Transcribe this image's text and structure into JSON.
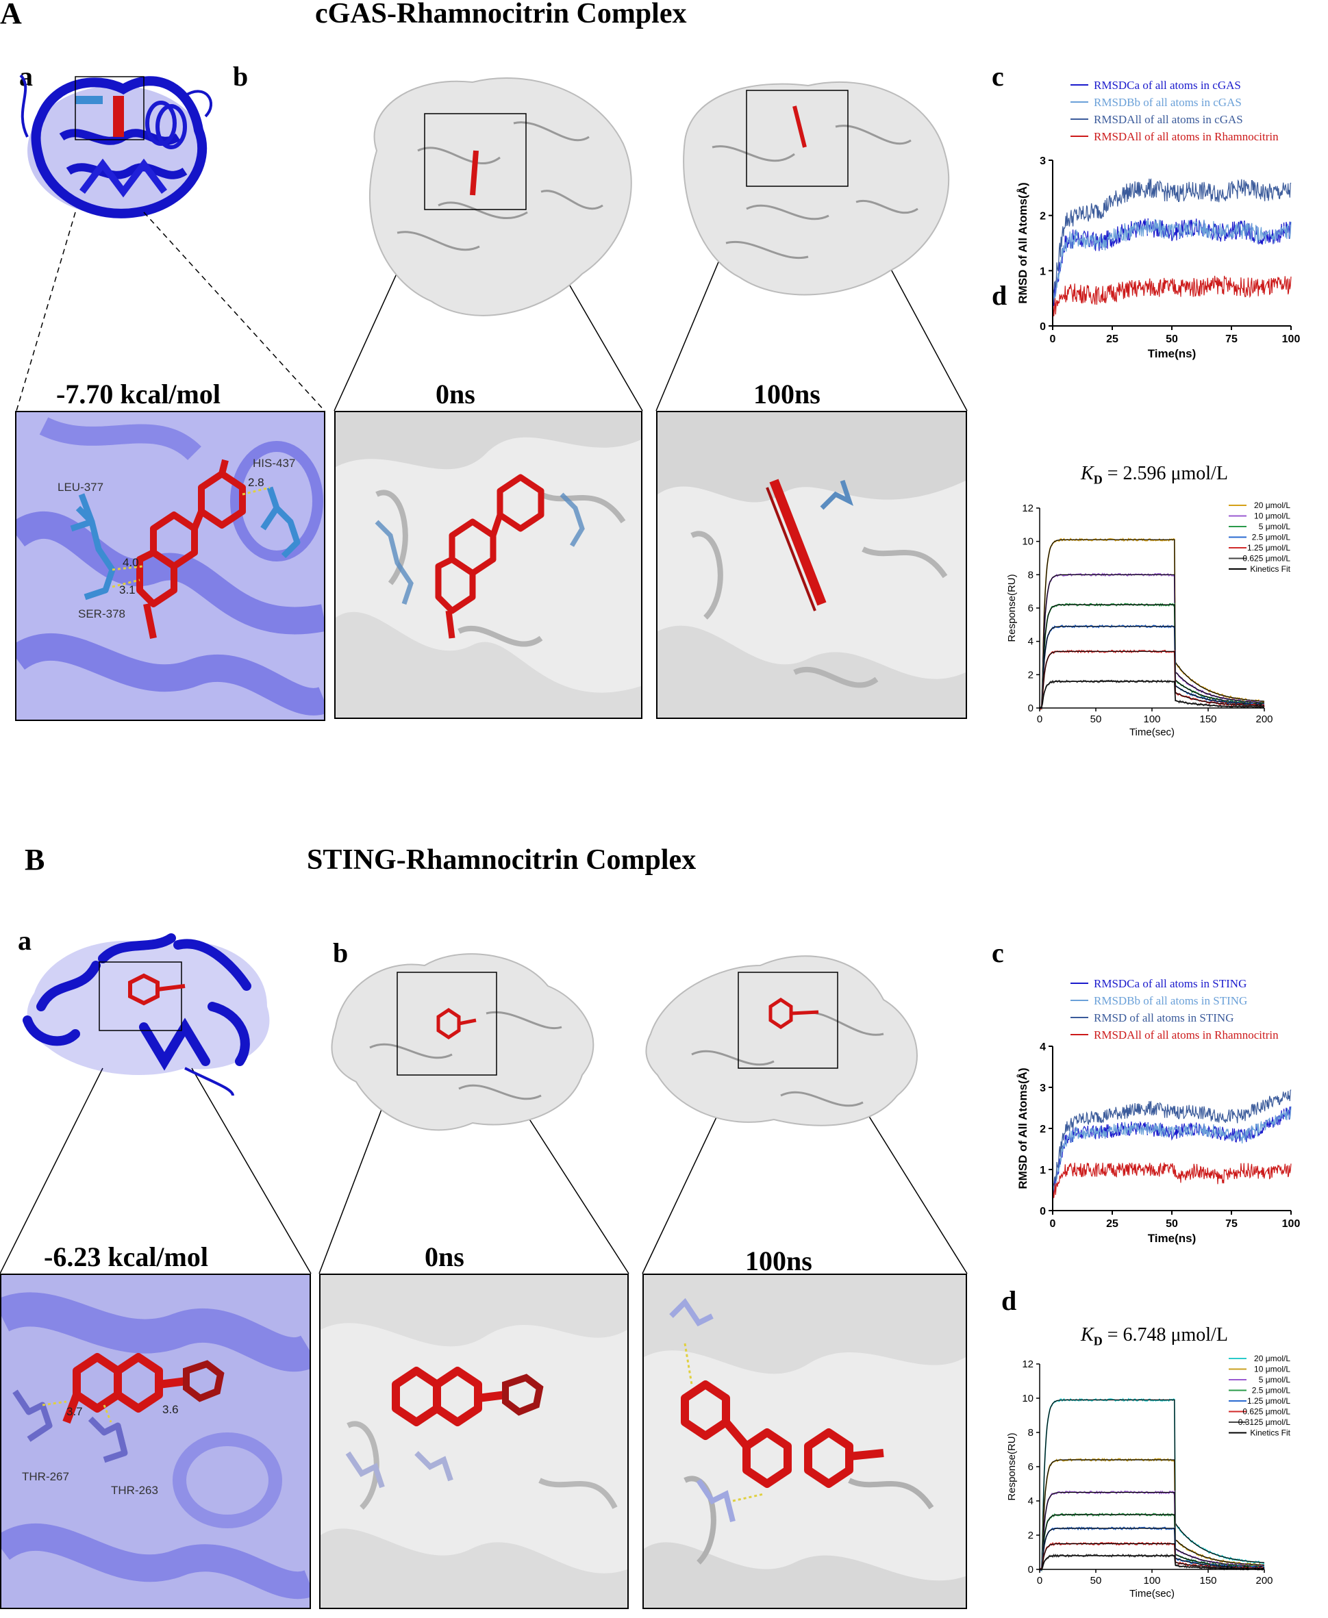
{
  "panelA": {
    "letter": "A",
    "title": "cGAS-Rhamnocitrin Complex",
    "sub_a": "a",
    "sub_b": "b",
    "sub_c": "c",
    "sub_d": "d",
    "energy": "-7.70 kcal/mol",
    "time0": "0ns",
    "time100": "100ns",
    "residues": [
      "LEU-377",
      "HIS-437",
      "SER-378"
    ],
    "distances": [
      "4.0",
      "3.1",
      "2.8"
    ],
    "kd_symbol": "K",
    "kd_sub": "D",
    "kd_value": "= 2.596 μmol/L"
  },
  "panelB": {
    "letter": "B",
    "title": "STING-Rhamnocitrin Complex",
    "sub_a": "a",
    "sub_b": "b",
    "sub_c": "c",
    "sub_d": "d",
    "energy": "-6.23 kcal/mol",
    "time0": "0ns",
    "time100": "100ns",
    "residues": [
      "THR-267",
      "THR-263"
    ],
    "distances": [
      "3.7",
      "3.6"
    ],
    "kd_symbol": "K",
    "kd_sub": "D",
    "kd_value": "= 6.748 μmol/L"
  },
  "colors": {
    "protein_blue": "#1414c8",
    "ligand_red": "#d21414",
    "residue_blue": "#3c8cd2",
    "surface_gray": "#e6e6e6"
  },
  "chart_data": [
    {
      "id": "A-c",
      "type": "line",
      "xlabel": "Time(ns)",
      "ylabel": "RMSD of All Atoms(Å)",
      "xlim": [
        0,
        100
      ],
      "ylim": [
        0,
        3
      ],
      "xticks": [
        0,
        25,
        50,
        75,
        100
      ],
      "yticks": [
        0,
        1,
        2,
        3
      ],
      "legend_position": "top",
      "series": [
        {
          "name": "RMSDCa of all atoms in cGAS",
          "color": "#1a1acc",
          "x": [
            0,
            5,
            10,
            20,
            30,
            40,
            50,
            60,
            70,
            80,
            90,
            100
          ],
          "values": [
            0.4,
            1.5,
            1.6,
            1.5,
            1.7,
            1.8,
            1.7,
            1.8,
            1.7,
            1.75,
            1.6,
            1.75
          ]
        },
        {
          "name": "RMSDBb  of all atoms in cGAS",
          "color": "#6aa0d8",
          "x": [
            0,
            5,
            10,
            20,
            30,
            40,
            50,
            60,
            70,
            80,
            90,
            100
          ],
          "values": [
            0.4,
            1.5,
            1.6,
            1.5,
            1.7,
            1.8,
            1.7,
            1.8,
            1.7,
            1.75,
            1.6,
            1.75
          ]
        },
        {
          "name": "RMSDAll  of all atoms in cGAS",
          "color": "#3a5a9a",
          "x": [
            0,
            5,
            10,
            20,
            30,
            40,
            50,
            60,
            70,
            80,
            90,
            100
          ],
          "values": [
            0.5,
            1.9,
            2.0,
            2.1,
            2.4,
            2.5,
            2.4,
            2.45,
            2.4,
            2.5,
            2.4,
            2.45
          ]
        },
        {
          "name": "RMSDAll of all atoms in Rhamnocitrin",
          "color": "#cc1a1a",
          "x": [
            0,
            5,
            10,
            20,
            30,
            40,
            50,
            60,
            70,
            80,
            90,
            100
          ],
          "values": [
            0.3,
            0.6,
            0.6,
            0.55,
            0.65,
            0.7,
            0.7,
            0.7,
            0.75,
            0.7,
            0.7,
            0.75
          ]
        }
      ]
    },
    {
      "id": "A-d",
      "type": "line",
      "xlabel": "Time(sec)",
      "ylabel": "Response(RU)",
      "xlim": [
        0,
        200
      ],
      "ylim": [
        0,
        12
      ],
      "xticks": [
        0,
        50,
        100,
        150,
        200
      ],
      "yticks": [
        0,
        2,
        4,
        6,
        8,
        10,
        12
      ],
      "legend_position": "top-right",
      "series": [
        {
          "name": "20  μmol/L",
          "color": "#d4a017",
          "plateau": 10.1
        },
        {
          "name": "10  μmol/L",
          "color": "#9a5ad0",
          "plateau": 8.0
        },
        {
          "name": "5  μmol/L",
          "color": "#2a9a4a",
          "plateau": 6.2
        },
        {
          "name": "2.5  μmol/L",
          "color": "#2a6ad0",
          "plateau": 4.9
        },
        {
          "name": "1.25  μmol/L",
          "color": "#d02a2a",
          "plateau": 3.4
        },
        {
          "name": "0.625  μmol/L",
          "color": "#444444",
          "plateau": 1.6
        },
        {
          "name": "Kinetics Fit",
          "color": "#000000",
          "plateau": null
        }
      ]
    },
    {
      "id": "B-c",
      "type": "line",
      "xlabel": "Time(ns)",
      "ylabel": "RMSD of All Atoms(Å)",
      "xlim": [
        0,
        100
      ],
      "ylim": [
        0,
        4
      ],
      "xticks": [
        0,
        25,
        50,
        75,
        100
      ],
      "yticks": [
        0,
        1,
        2,
        3,
        4
      ],
      "legend_position": "top",
      "series": [
        {
          "name": "RMSDCa of all atoms in STING",
          "color": "#1a1acc",
          "x": [
            0,
            5,
            10,
            20,
            30,
            40,
            50,
            60,
            70,
            80,
            90,
            100
          ],
          "values": [
            0.4,
            1.7,
            1.9,
            1.9,
            2.0,
            2.0,
            1.9,
            2.0,
            1.9,
            1.8,
            2.1,
            2.4
          ]
        },
        {
          "name": "RMSDBb  of all atoms in STING",
          "color": "#6aa0d8",
          "x": [
            0,
            5,
            10,
            20,
            30,
            40,
            50,
            60,
            70,
            80,
            90,
            100
          ],
          "values": [
            0.4,
            1.7,
            1.9,
            1.9,
            2.0,
            2.0,
            1.9,
            2.0,
            1.9,
            1.8,
            2.1,
            2.4
          ]
        },
        {
          "name": "RMSD of all atoms in STING",
          "color": "#3a5a9a",
          "x": [
            0,
            5,
            10,
            20,
            30,
            40,
            50,
            60,
            70,
            80,
            90,
            100
          ],
          "values": [
            0.5,
            2.0,
            2.2,
            2.3,
            2.4,
            2.5,
            2.4,
            2.4,
            2.3,
            2.3,
            2.6,
            2.8
          ]
        },
        {
          "name": "RMSDAll of all atoms in Rhamnocitrin",
          "color": "#cc1a1a",
          "x": [
            0,
            5,
            10,
            20,
            30,
            40,
            50,
            55,
            60,
            70,
            80,
            90,
            100
          ],
          "values": [
            0.4,
            1.0,
            1.0,
            1.0,
            1.0,
            1.0,
            1.0,
            0.8,
            1.0,
            0.8,
            1.0,
            0.9,
            1.0
          ]
        }
      ]
    },
    {
      "id": "B-d",
      "type": "line",
      "xlabel": "Time(sec)",
      "ylabel": "Response(RU)",
      "xlim": [
        0,
        200
      ],
      "ylim": [
        0,
        12
      ],
      "xticks": [
        0,
        50,
        100,
        150,
        200
      ],
      "yticks": [
        0,
        2,
        4,
        6,
        8,
        10,
        12
      ],
      "legend_position": "top-right",
      "series": [
        {
          "name": "20  μmol/L",
          "color": "#2acaca",
          "plateau": 9.9
        },
        {
          "name": "10  μmol/L",
          "color": "#c8a020",
          "plateau": 6.4
        },
        {
          "name": "5  μmol/L",
          "color": "#9a5ad0",
          "plateau": 4.5
        },
        {
          "name": "2.5  μmol/L",
          "color": "#2a9a4a",
          "plateau": 3.2
        },
        {
          "name": "1.25  μmol/L",
          "color": "#2a6ad0",
          "plateau": 2.4
        },
        {
          "name": "0.625  μmol/L",
          "color": "#d02a2a",
          "plateau": 1.5
        },
        {
          "name": "0.3125  μmol/L",
          "color": "#444444",
          "plateau": 0.8
        },
        {
          "name": "Kinetics Fit",
          "color": "#000000",
          "plateau": null
        }
      ]
    }
  ]
}
